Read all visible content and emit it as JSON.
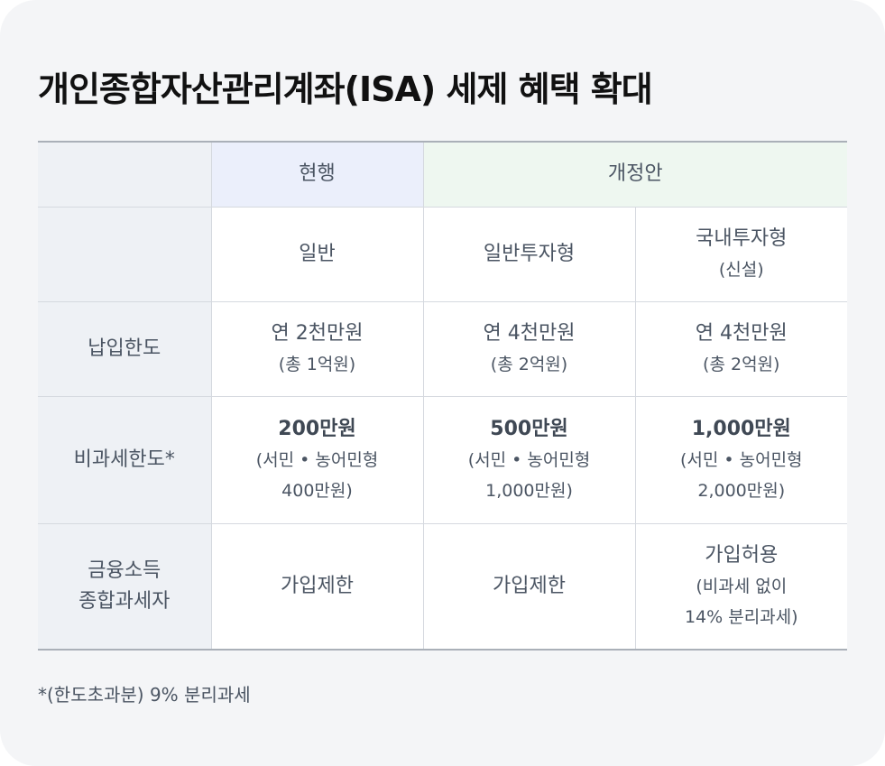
{
  "title": "개인종합자산관리계좌(ISA) 세제 혜택 확대",
  "header": {
    "current": "현행",
    "proposal": "개정안"
  },
  "types": [
    {
      "main": "일반",
      "sub": ""
    },
    {
      "main": "일반투자형",
      "sub": ""
    },
    {
      "main": "국내투자형",
      "sub": "(신설)"
    }
  ],
  "rows": [
    {
      "label": [
        "납입한도"
      ],
      "cells": [
        [
          "연 2천만원",
          "(총 1억원)"
        ],
        [
          "연 4천만원",
          "(총 2억원)"
        ],
        [
          "연 4천만원",
          "(총 2억원)"
        ]
      ]
    },
    {
      "label": [
        "비과세한도*"
      ],
      "cells": [
        [
          "200만원",
          "(서민 • 농어민형",
          "400만원)"
        ],
        [
          "500만원",
          "(서민 • 농어민형",
          "1,000만원)"
        ],
        [
          "1,000만원",
          "(서민 • 농어민형",
          "2,000만원)"
        ]
      ]
    },
    {
      "label": [
        "금융소득",
        "종합과세자"
      ],
      "cells": [
        [
          "가입제한"
        ],
        [
          "가입제한"
        ],
        [
          "가입허용",
          "(비과세 없이",
          "14% 분리과세)"
        ]
      ]
    }
  ],
  "footnote": "*(한도초과분) 9% 분리과세",
  "colors": {
    "background": "#f4f5f7",
    "current_header": "#ebeffb",
    "proposal_header": "#eef7f0",
    "label_column": "#eef1f5",
    "text": "#4b5563"
  }
}
